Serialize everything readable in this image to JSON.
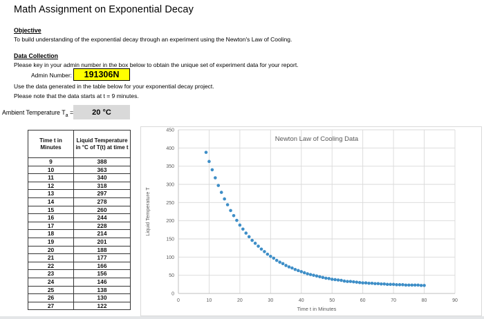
{
  "page": {
    "title": "Math Assignment on Exponential Decay",
    "objective_heading": "Objective",
    "objective_text": "To build understanding of the exponential decay through an experiment using the Newton's Law of Cooling.",
    "data_collection_heading": "Data Collection",
    "instruction_key_in": "Please key in your admin number in the box below to obtain the unique set of experiment data for your report.",
    "admin_label": "Admin Number:",
    "admin_value": "191306N",
    "instruction_use_data": "Use the data generated in the table below for your exponential decay project.",
    "instruction_note": "Please note that the data starts at  t = 9 minutes.",
    "ambient_label_prefix": "Ambient Temperature T",
    "ambient_label_sub": "a",
    "ambient_label_suffix": " =",
    "ambient_value": "20 °C"
  },
  "colors": {
    "highlight_yellow": "#ffff00",
    "value_box_gray": "#d9d9d9",
    "gridline_gray": "#d9d9d9",
    "axis_text_gray": "#595959",
    "marker_blue": "#3e8ec7"
  },
  "table": {
    "col1_header": "Time t in Minutes",
    "col2_header": "Liquid Temperature in °C of T(t) at time t",
    "rows": [
      [
        9,
        388
      ],
      [
        10,
        363
      ],
      [
        11,
        340
      ],
      [
        12,
        318
      ],
      [
        13,
        297
      ],
      [
        14,
        278
      ],
      [
        15,
        260
      ],
      [
        16,
        244
      ],
      [
        17,
        228
      ],
      [
        18,
        214
      ],
      [
        19,
        201
      ],
      [
        20,
        188
      ],
      [
        21,
        177
      ],
      [
        22,
        166
      ],
      [
        23,
        156
      ],
      [
        24,
        146
      ],
      [
        25,
        138
      ],
      [
        26,
        130
      ],
      [
        27,
        122
      ]
    ]
  },
  "chart_data": {
    "type": "scatter",
    "title": "Newton Law of Cooling Data",
    "xlabel": "Time t in Minutes",
    "ylabel": "Liquid Temperature T",
    "xlim": [
      0,
      90
    ],
    "ylim": [
      0,
      450
    ],
    "x_ticks": [
      0,
      10,
      20,
      30,
      40,
      50,
      60,
      70,
      80,
      90
    ],
    "y_ticks": [
      0,
      50,
      100,
      150,
      200,
      250,
      300,
      350,
      400,
      450
    ],
    "grid": true,
    "legend": "none",
    "marker_color": "#3e8ec7",
    "series": [
      {
        "name": "Newton Law of Cooling Data",
        "x": [
          9,
          10,
          11,
          12,
          13,
          14,
          15,
          16,
          17,
          18,
          19,
          20,
          21,
          22,
          23,
          24,
          25,
          26,
          27,
          28,
          29,
          30,
          31,
          32,
          33,
          34,
          35,
          36,
          37,
          38,
          39,
          40,
          41,
          42,
          43,
          44,
          45,
          46,
          47,
          48,
          49,
          50,
          51,
          52,
          53,
          54,
          55,
          56,
          57,
          58,
          59,
          60,
          61,
          62,
          63,
          64,
          65,
          66,
          67,
          68,
          69,
          70,
          71,
          72,
          73,
          74,
          75,
          76,
          77,
          78,
          79,
          80
        ],
        "y": [
          388,
          363,
          340,
          318,
          297,
          278,
          260,
          244,
          228,
          214,
          201,
          188,
          177,
          166,
          156,
          146,
          138,
          130,
          122,
          115,
          108,
          102,
          97,
          91,
          86,
          82,
          77,
          73,
          70,
          66,
          63,
          60,
          57,
          54,
          52,
          50,
          48,
          46,
          44,
          42,
          41,
          39,
          38,
          37,
          36,
          34,
          33,
          33,
          32,
          31,
          30,
          29,
          29,
          28,
          28,
          27,
          27,
          26,
          26,
          25,
          25,
          25,
          24,
          24,
          24,
          23,
          23,
          23,
          23,
          23,
          22,
          22
        ]
      }
    ]
  }
}
